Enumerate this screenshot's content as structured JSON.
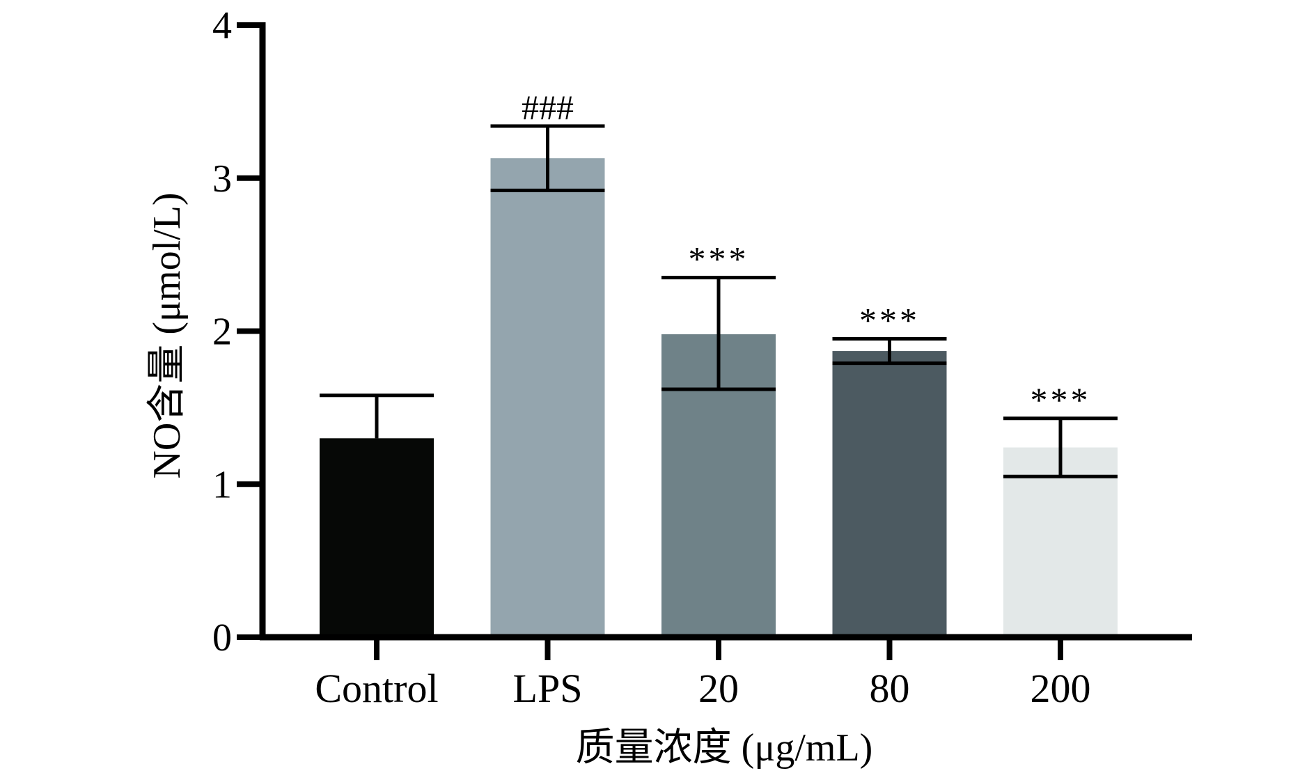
{
  "chart_data": {
    "type": "bar",
    "title": "",
    "xlabel": "质量浓度 (μg/mL)",
    "ylabel": "NO含量 (μmol/L)",
    "categories": [
      "Control",
      "LPS",
      "20",
      "80",
      "200"
    ],
    "values": [
      1.3,
      3.13,
      1.98,
      1.87,
      1.24
    ],
    "error_upper": [
      1.58,
      3.34,
      2.35,
      1.95,
      1.43
    ],
    "error_lower": [
      1.02,
      2.92,
      1.62,
      1.79,
      1.05
    ],
    "show_lower_error": [
      false,
      true,
      true,
      true,
      true
    ],
    "annotations": [
      "",
      "###",
      "***",
      "***",
      "***"
    ],
    "colors": [
      "#060806",
      "#94a5ae",
      "#6f8288",
      "#4c5a61",
      "#e3e8e8"
    ],
    "ylim": [
      0,
      4
    ],
    "yticks": [
      0,
      1,
      2,
      3,
      4
    ],
    "ytick_labels": [
      "0",
      "1",
      "2",
      "3",
      "4"
    ],
    "grid": false,
    "legend": "none"
  }
}
